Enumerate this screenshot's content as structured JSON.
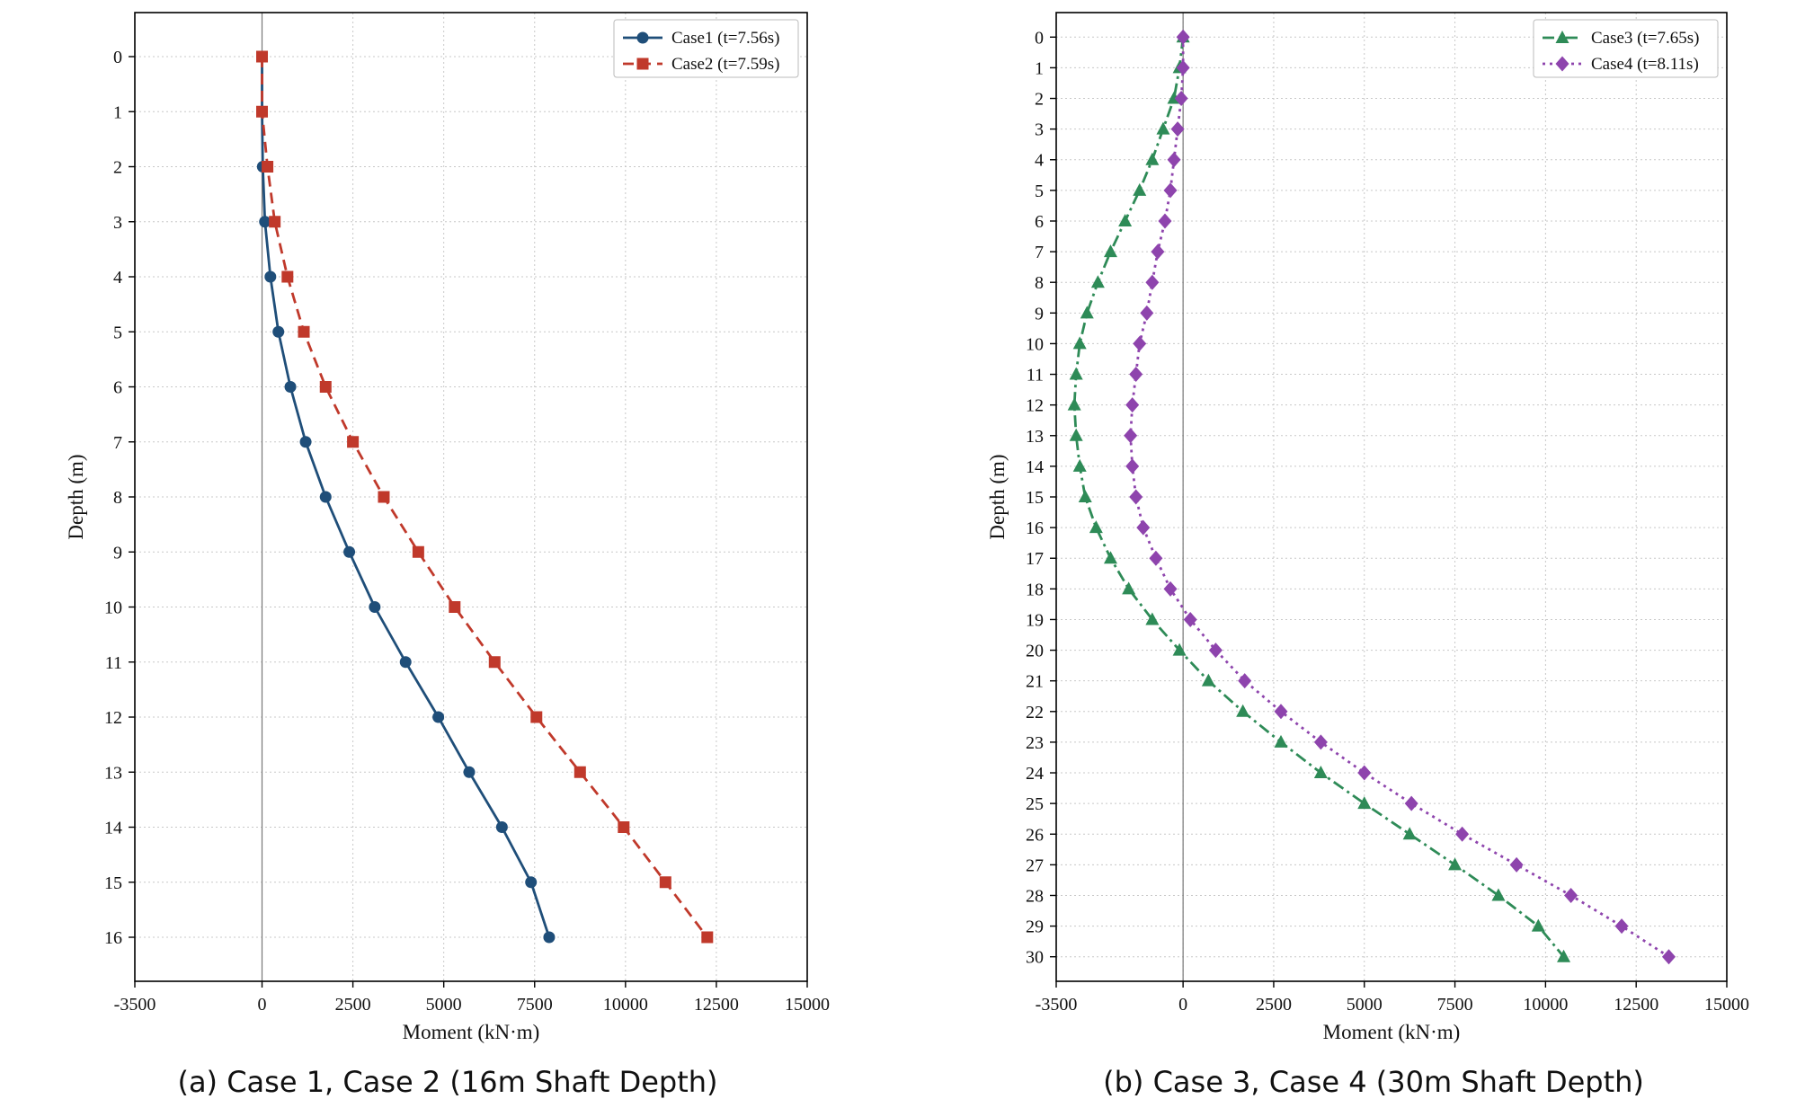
{
  "chart_data": [
    {
      "type": "line",
      "caption": "(a) Case 1, Case 2 (16m Shaft Depth)",
      "xlabel": "Moment (kN·m)",
      "ylabel": "Depth (m)",
      "xlim": [
        -3500,
        15000
      ],
      "ylim": [
        16.8,
        -0.8
      ],
      "xticks": [
        -3500,
        0,
        2500,
        5000,
        7500,
        10000,
        12500,
        15000
      ],
      "yticks": [
        0,
        1,
        2,
        3,
        4,
        5,
        6,
        7,
        8,
        9,
        10,
        11,
        12,
        13,
        14,
        15,
        16
      ],
      "grid": true,
      "legend_position": "top-right",
      "series": [
        {
          "name": "Case1 (t=7.56s)",
          "color": "#1f4e79",
          "marker": "circle",
          "dash": "solid",
          "depth": [
            0,
            1,
            2,
            3,
            4,
            5,
            6,
            7,
            8,
            9,
            10,
            11,
            12,
            13,
            14,
            15,
            16
          ],
          "moment": [
            0,
            0,
            20,
            80,
            230,
            450,
            780,
            1200,
            1750,
            2400,
            3100,
            3950,
            4850,
            5700,
            6600,
            7400,
            7900
          ]
        },
        {
          "name": "Case2 (t=7.59s)",
          "color": "#c0392b",
          "marker": "square",
          "dash": "dashed",
          "depth": [
            0,
            1,
            2,
            3,
            4,
            5,
            6,
            7,
            8,
            9,
            10,
            11,
            12,
            13,
            14,
            15,
            16
          ],
          "moment": [
            0,
            0,
            150,
            350,
            700,
            1150,
            1750,
            2500,
            3350,
            4300,
            5300,
            6400,
            7550,
            8750,
            9950,
            11100,
            12250
          ]
        }
      ]
    },
    {
      "type": "line",
      "caption": "(b) Case 3, Case 4 (30m Shaft Depth)",
      "xlabel": "Moment (kN·m)",
      "ylabel": "Depth (m)",
      "xlim": [
        -3500,
        15000
      ],
      "ylim": [
        30.8,
        -0.8
      ],
      "xticks": [
        -3500,
        0,
        2500,
        5000,
        7500,
        10000,
        12500,
        15000
      ],
      "yticks": [
        0,
        1,
        2,
        3,
        4,
        5,
        6,
        7,
        8,
        9,
        10,
        11,
        12,
        13,
        14,
        15,
        16,
        17,
        18,
        19,
        20,
        21,
        22,
        23,
        24,
        25,
        26,
        27,
        28,
        29,
        30
      ],
      "grid": true,
      "legend_position": "top-right",
      "series": [
        {
          "name": "Case3 (t=7.65s)",
          "color": "#2e8b57",
          "marker": "triangle",
          "dash": "dashdot",
          "depth": [
            0,
            1,
            2,
            3,
            4,
            5,
            6,
            7,
            8,
            9,
            10,
            11,
            12,
            13,
            14,
            15,
            16,
            17,
            18,
            19,
            20,
            21,
            22,
            23,
            24,
            25,
            26,
            27,
            28,
            29,
            30
          ],
          "moment": [
            0,
            -100,
            -250,
            -550,
            -850,
            -1200,
            -1600,
            -2000,
            -2350,
            -2650,
            -2850,
            -2950,
            -3000,
            -2950,
            -2850,
            -2700,
            -2400,
            -2000,
            -1500,
            -850,
            -100,
            700,
            1650,
            2700,
            3800,
            5000,
            6250,
            7500,
            8700,
            9800,
            10500
          ]
        },
        {
          "name": "Case4 (t=8.11s)",
          "color": "#8e44ad",
          "marker": "diamond",
          "dash": "dotted",
          "depth": [
            0,
            1,
            2,
            3,
            4,
            5,
            6,
            7,
            8,
            9,
            10,
            11,
            12,
            13,
            14,
            15,
            16,
            17,
            18,
            19,
            20,
            21,
            22,
            23,
            24,
            25,
            26,
            27,
            28,
            29,
            30
          ],
          "moment": [
            0,
            0,
            -50,
            -150,
            -250,
            -350,
            -500,
            -700,
            -850,
            -1000,
            -1200,
            -1300,
            -1400,
            -1450,
            -1400,
            -1300,
            -1100,
            -750,
            -350,
            200,
            900,
            1700,
            2700,
            3800,
            5000,
            6300,
            7700,
            9200,
            10700,
            12100,
            13400
          ]
        }
      ]
    }
  ]
}
